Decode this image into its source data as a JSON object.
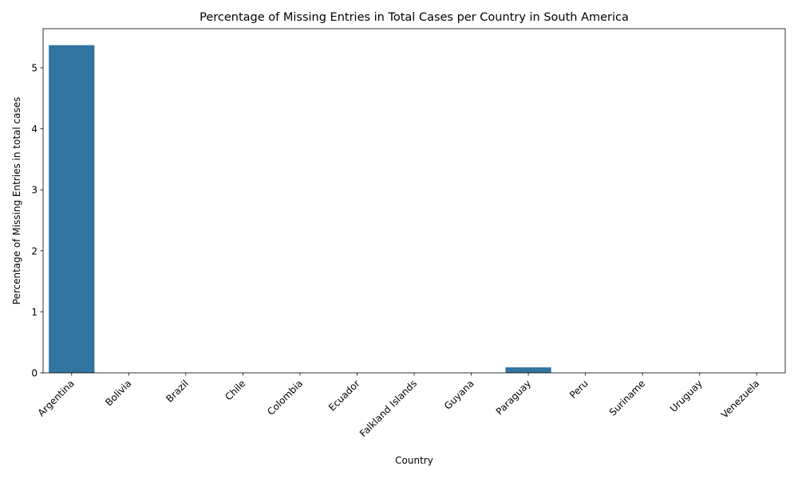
{
  "chart_data": {
    "type": "bar",
    "title": "Percentage of Missing Entries in Total Cases per Country in South America",
    "xlabel": "Country",
    "ylabel": "Percentage of Missing Entries in total cases",
    "categories": [
      "Argentina",
      "Bolivia",
      "Brazil",
      "Chile",
      "Colombia",
      "Ecuador",
      "Falkland Islands",
      "Guyana",
      "Paraguay",
      "Peru",
      "Suriname",
      "Uruguay",
      "Venezuela"
    ],
    "values": [
      5.37,
      0,
      0,
      0,
      0,
      0,
      0,
      0,
      0.09,
      0,
      0,
      0,
      0
    ],
    "ylim": [
      0,
      5.64
    ],
    "yticks": [
      0,
      1,
      2,
      3,
      4,
      5
    ],
    "grid": false,
    "bar_color": "#3274a1"
  }
}
